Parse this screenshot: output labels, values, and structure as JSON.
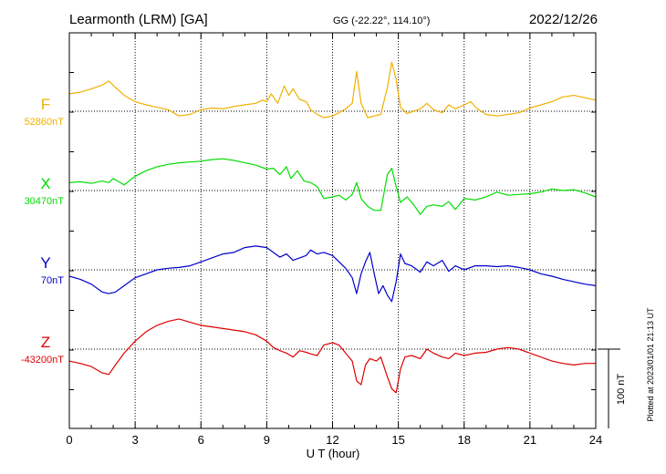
{
  "header": {
    "station": "Learmonth (LRM)  [GA]",
    "coords": "GG (-22.22°, 114.10°)",
    "date": "2022/12/26"
  },
  "footer": {
    "plotted": "Plotted at 2023/01/01 21:13 UT"
  },
  "chart_data": {
    "type": "line",
    "title": "Learmonth (LRM)  [GA]",
    "xlabel": "U T (hour)",
    "ylabel": "",
    "xlim": [
      0,
      24
    ],
    "x_ticks": [
      0,
      3,
      6,
      9,
      12,
      15,
      18,
      21,
      24
    ],
    "grid": "dotted",
    "scale_bar": {
      "label": "100 nT",
      "value": 100
    },
    "y_units_per_division": 100,
    "series": [
      {
        "name": "F",
        "baseline_label": "52860nT",
        "color": "#f0b000",
        "points": [
          [
            0,
            22
          ],
          [
            0.5,
            24
          ],
          [
            1,
            28
          ],
          [
            1.5,
            33
          ],
          [
            1.8,
            38
          ],
          [
            2.1,
            30
          ],
          [
            2.5,
            20
          ],
          [
            3,
            12
          ],
          [
            3.5,
            8
          ],
          [
            4,
            5
          ],
          [
            4.5,
            2
          ],
          [
            5,
            -6
          ],
          [
            5.5,
            -4
          ],
          [
            6,
            2
          ],
          [
            6.5,
            4
          ],
          [
            7,
            3
          ],
          [
            7.5,
            6
          ],
          [
            8,
            8
          ],
          [
            8.5,
            10
          ],
          [
            8.8,
            14
          ],
          [
            9,
            12
          ],
          [
            9.2,
            22
          ],
          [
            9.5,
            10
          ],
          [
            9.8,
            32
          ],
          [
            10,
            20
          ],
          [
            10.2,
            28
          ],
          [
            10.5,
            15
          ],
          [
            10.8,
            12
          ],
          [
            11,
            2
          ],
          [
            11.3,
            -4
          ],
          [
            11.6,
            -8
          ],
          [
            12,
            -6
          ],
          [
            12.3,
            -2
          ],
          [
            12.6,
            3
          ],
          [
            12.9,
            10
          ],
          [
            13.1,
            50
          ],
          [
            13.3,
            10
          ],
          [
            13.6,
            -8
          ],
          [
            13.9,
            -6
          ],
          [
            14.2,
            -4
          ],
          [
            14.5,
            30
          ],
          [
            14.7,
            62
          ],
          [
            14.9,
            40
          ],
          [
            15.1,
            5
          ],
          [
            15.4,
            -3
          ],
          [
            15.7,
            0
          ],
          [
            16,
            3
          ],
          [
            16.3,
            10
          ],
          [
            16.6,
            2
          ],
          [
            17,
            -2
          ],
          [
            17.3,
            8
          ],
          [
            17.6,
            3
          ],
          [
            18,
            8
          ],
          [
            18.3,
            12
          ],
          [
            18.6,
            3
          ],
          [
            19,
            -4
          ],
          [
            19.5,
            -6
          ],
          [
            20,
            -4
          ],
          [
            20.5,
            -2
          ],
          [
            21,
            4
          ],
          [
            21.5,
            8
          ],
          [
            22,
            12
          ],
          [
            22.5,
            18
          ],
          [
            23,
            20
          ],
          [
            23.5,
            17
          ],
          [
            24,
            14
          ]
        ]
      },
      {
        "name": "X",
        "baseline_label": "30470nT",
        "color": "#00dd00",
        "points": [
          [
            0,
            10
          ],
          [
            0.5,
            11
          ],
          [
            1,
            9
          ],
          [
            1.5,
            12
          ],
          [
            1.8,
            10
          ],
          [
            2,
            15
          ],
          [
            2.5,
            7
          ],
          [
            3,
            18
          ],
          [
            3.5,
            25
          ],
          [
            4,
            30
          ],
          [
            4.5,
            33
          ],
          [
            5,
            35
          ],
          [
            5.5,
            36
          ],
          [
            6,
            37
          ],
          [
            6.5,
            39
          ],
          [
            7,
            40
          ],
          [
            7.5,
            38
          ],
          [
            8,
            35
          ],
          [
            8.5,
            32
          ],
          [
            9,
            27
          ],
          [
            9.3,
            28
          ],
          [
            9.6,
            20
          ],
          [
            9.9,
            30
          ],
          [
            10.1,
            15
          ],
          [
            10.4,
            25
          ],
          [
            10.7,
            12
          ],
          [
            11,
            10
          ],
          [
            11.3,
            5
          ],
          [
            11.6,
            -10
          ],
          [
            12,
            -8
          ],
          [
            12.3,
            -6
          ],
          [
            12.6,
            -12
          ],
          [
            12.9,
            -5
          ],
          [
            13.1,
            10
          ],
          [
            13.3,
            -10
          ],
          [
            13.6,
            -20
          ],
          [
            13.9,
            -25
          ],
          [
            14.2,
            -25
          ],
          [
            14.5,
            20
          ],
          [
            14.7,
            28
          ],
          [
            14.9,
            5
          ],
          [
            15.1,
            -15
          ],
          [
            15.4,
            -8
          ],
          [
            15.7,
            -18
          ],
          [
            16,
            -30
          ],
          [
            16.3,
            -20
          ],
          [
            16.6,
            -18
          ],
          [
            17,
            -20
          ],
          [
            17.3,
            -14
          ],
          [
            17.6,
            -24
          ],
          [
            18,
            -10
          ],
          [
            18.5,
            -12
          ],
          [
            19,
            -8
          ],
          [
            19.5,
            -2
          ],
          [
            20,
            -6
          ],
          [
            20.5,
            -5
          ],
          [
            21,
            -4
          ],
          [
            21.5,
            -2
          ],
          [
            22,
            2
          ],
          [
            22.5,
            0
          ],
          [
            23,
            1
          ],
          [
            23.5,
            -3
          ],
          [
            24,
            -8
          ]
        ]
      },
      {
        "name": "Y",
        "baseline_label": "70nT",
        "color": "#0000cc",
        "points": [
          [
            0,
            -8
          ],
          [
            0.5,
            -12
          ],
          [
            1,
            -18
          ],
          [
            1.5,
            -28
          ],
          [
            1.8,
            -30
          ],
          [
            2.1,
            -28
          ],
          [
            2.5,
            -20
          ],
          [
            3,
            -10
          ],
          [
            3.5,
            -5
          ],
          [
            4,
            0
          ],
          [
            4.5,
            2
          ],
          [
            5,
            3
          ],
          [
            5.5,
            5
          ],
          [
            6,
            10
          ],
          [
            6.5,
            15
          ],
          [
            7,
            20
          ],
          [
            7.5,
            22
          ],
          [
            8,
            28
          ],
          [
            8.5,
            30
          ],
          [
            9,
            28
          ],
          [
            9.3,
            22
          ],
          [
            9.6,
            16
          ],
          [
            9.9,
            20
          ],
          [
            10.2,
            12
          ],
          [
            10.5,
            15
          ],
          [
            10.8,
            18
          ],
          [
            11,
            25
          ],
          [
            11.3,
            20
          ],
          [
            11.6,
            22
          ],
          [
            12,
            18
          ],
          [
            12.3,
            10
          ],
          [
            12.6,
            2
          ],
          [
            12.9,
            -10
          ],
          [
            13.1,
            -30
          ],
          [
            13.3,
            -5
          ],
          [
            13.5,
            10
          ],
          [
            13.7,
            22
          ],
          [
            13.9,
            -5
          ],
          [
            14.1,
            -30
          ],
          [
            14.3,
            -20
          ],
          [
            14.5,
            -32
          ],
          [
            14.7,
            -40
          ],
          [
            14.9,
            -15
          ],
          [
            15.1,
            20
          ],
          [
            15.3,
            8
          ],
          [
            15.6,
            5
          ],
          [
            16,
            -3
          ],
          [
            16.3,
            10
          ],
          [
            16.6,
            5
          ],
          [
            17,
            12
          ],
          [
            17.3,
            -2
          ],
          [
            17.6,
            5
          ],
          [
            18,
            0
          ],
          [
            18.5,
            5
          ],
          [
            19,
            5
          ],
          [
            19.5,
            4
          ],
          [
            20,
            5
          ],
          [
            20.5,
            3
          ],
          [
            21,
            0
          ],
          [
            21.5,
            -5
          ],
          [
            22,
            -8
          ],
          [
            22.5,
            -12
          ],
          [
            23,
            -15
          ],
          [
            23.5,
            -18
          ],
          [
            24,
            -20
          ]
        ]
      },
      {
        "name": "Z",
        "baseline_label": "-43200nT",
        "color": "#dd0000",
        "points": [
          [
            0,
            -15
          ],
          [
            0.5,
            -18
          ],
          [
            1,
            -22
          ],
          [
            1.5,
            -30
          ],
          [
            1.8,
            -32
          ],
          [
            2.1,
            -20
          ],
          [
            2.5,
            -5
          ],
          [
            3,
            10
          ],
          [
            3.5,
            22
          ],
          [
            4,
            30
          ],
          [
            4.5,
            35
          ],
          [
            5,
            38
          ],
          [
            5.5,
            34
          ],
          [
            6,
            30
          ],
          [
            6.5,
            28
          ],
          [
            7,
            26
          ],
          [
            7.5,
            24
          ],
          [
            8,
            22
          ],
          [
            8.5,
            18
          ],
          [
            9,
            10
          ],
          [
            9.3,
            2
          ],
          [
            9.6,
            -2
          ],
          [
            9.9,
            -5
          ],
          [
            10.2,
            -10
          ],
          [
            10.5,
            -2
          ],
          [
            10.8,
            -4
          ],
          [
            11,
            -6
          ],
          [
            11.3,
            -8
          ],
          [
            11.6,
            5
          ],
          [
            12,
            8
          ],
          [
            12.3,
            5
          ],
          [
            12.6,
            -5
          ],
          [
            12.9,
            -15
          ],
          [
            13.1,
            -40
          ],
          [
            13.3,
            -45
          ],
          [
            13.5,
            -20
          ],
          [
            13.7,
            -12
          ],
          [
            14,
            -15
          ],
          [
            14.2,
            -10
          ],
          [
            14.5,
            -35
          ],
          [
            14.7,
            -50
          ],
          [
            14.9,
            -55
          ],
          [
            15.1,
            -25
          ],
          [
            15.3,
            -10
          ],
          [
            15.6,
            -8
          ],
          [
            16,
            -12
          ],
          [
            16.3,
            0
          ],
          [
            16.6,
            -5
          ],
          [
            17,
            -10
          ],
          [
            17.3,
            -12
          ],
          [
            17.6,
            -5
          ],
          [
            18,
            -8
          ],
          [
            18.5,
            -5
          ],
          [
            19,
            -4
          ],
          [
            19.5,
            0
          ],
          [
            20,
            2
          ],
          [
            20.5,
            0
          ],
          [
            21,
            -5
          ],
          [
            21.5,
            -10
          ],
          [
            22,
            -15
          ],
          [
            22.5,
            -18
          ],
          [
            23,
            -20
          ],
          [
            23.5,
            -18
          ],
          [
            24,
            -18
          ]
        ]
      }
    ]
  }
}
